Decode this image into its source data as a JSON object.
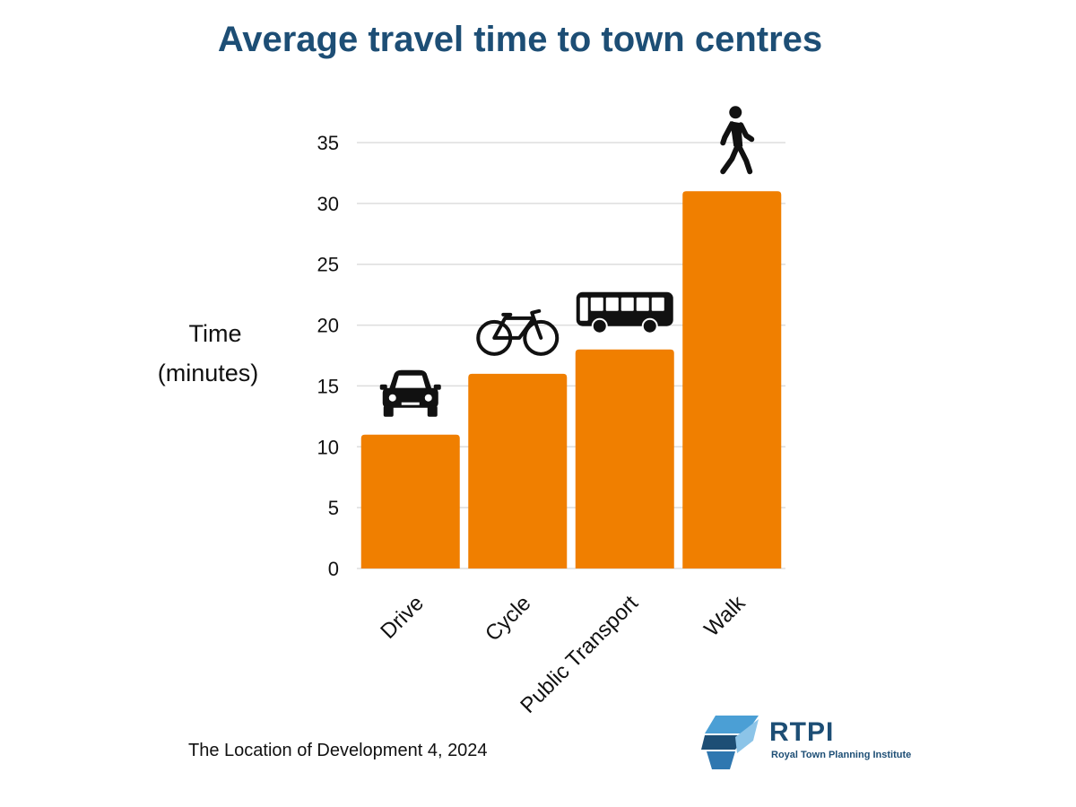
{
  "chart_data": {
    "type": "bar",
    "title": "Average travel time to town centres",
    "ylabel_line1": "Time",
    "ylabel_line2": "(minutes)",
    "xlabel": "",
    "categories": [
      "Drive",
      "Cycle",
      "Public Transport",
      "Walk"
    ],
    "values": [
      11,
      16,
      18,
      31
    ],
    "icons": [
      "car-icon",
      "bicycle-icon",
      "bus-icon",
      "pedestrian-icon"
    ],
    "ylim": [
      0,
      35
    ],
    "yticks": [
      0,
      5,
      10,
      15,
      20,
      25,
      30,
      35
    ],
    "grid": true,
    "bar_color": "#f07f00",
    "grid_color": "#dddddd"
  },
  "footer": {
    "source": "The Location of Development 4, 2024"
  },
  "logo": {
    "abbr": "RTPI",
    "full_name": "Royal Town Planning Institute",
    "color": "#1d4e75",
    "accent": "#4b9fd5"
  }
}
